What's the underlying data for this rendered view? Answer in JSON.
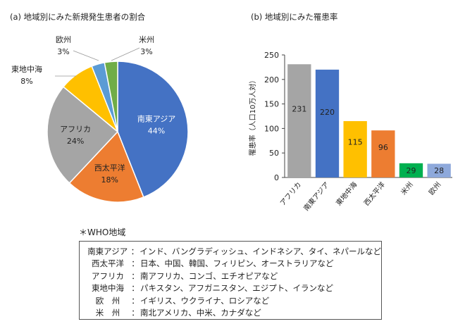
{
  "chart_data": [
    {
      "type": "pie",
      "title": "(a) 地域別にみた新規発生患者の割合",
      "slices": [
        {
          "label": "南東アジア",
          "value": 44,
          "text": "44%",
          "color": "#4472C4"
        },
        {
          "label": "西太平洋",
          "value": 18,
          "text": "18%",
          "color": "#ED7D31"
        },
        {
          "label": "アフリカ",
          "value": 24,
          "text": "24%",
          "color": "#A5A5A5"
        },
        {
          "label": "東地中海",
          "value": 8,
          "text": "8%",
          "color": "#FFC000"
        },
        {
          "label": "欧州",
          "value": 3,
          "text": "3%",
          "color": "#5B9BD5"
        },
        {
          "label": "米州",
          "value": 3,
          "text": "3%",
          "color": "#70AD47"
        }
      ]
    },
    {
      "type": "bar",
      "title": "(b) 地域別にみた罹患率",
      "categories": [
        "アフリカ",
        "南東アジア",
        "東地中海",
        "西太平洋",
        "米州",
        "欧州"
      ],
      "values": [
        231,
        220,
        115,
        96,
        29,
        28
      ],
      "colors": [
        "#A5A5A5",
        "#4472C4",
        "#FFC000",
        "#ED7D31",
        "#00B050",
        "#8EA9DB"
      ],
      "ylabel": "罹患率（人口10万人対）",
      "ylim": [
        0,
        250
      ],
      "yticks": [
        "0",
        "50",
        "100",
        "150",
        "200",
        "250"
      ]
    }
  ],
  "note": {
    "title": "＊WHO地域",
    "separator": "：",
    "rows": [
      {
        "region": "南東アジア",
        "countries": "インド、バングラディッシュ、インドネシア、タイ、ネパールなど"
      },
      {
        "region": "西太平洋",
        "countries": "日本、中国、韓国、フィリピン、オーストラリアなど"
      },
      {
        "region": "アフリカ",
        "countries": "南アフリカ、コンゴ、エチオピアなど"
      },
      {
        "region": "東地中海",
        "countries": "パキスタン、アフガニスタン、エジプト、イランなど"
      },
      {
        "region": "欧　州",
        "countries": "イギリス、ウクライナ、ロシアなど"
      },
      {
        "region": "米　州",
        "countries": "南北アメリカ、中米、カナダなど"
      }
    ]
  }
}
